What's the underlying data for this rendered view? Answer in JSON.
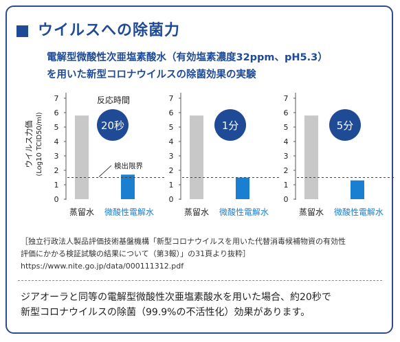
{
  "title": "ウイルスへの除菌力",
  "subtitle_lines": [
    "電解型微酸性次亜塩素酸水（有効塩素濃度32ppm、pH5.3）",
    "を用いた新型コロナウイルスの除菌効果の実験"
  ],
  "colors": {
    "accent": "#1f4a96",
    "bar_control": "#c8c8c8",
    "bar_treated": "#1a7fd1",
    "badge": "#1f4a96"
  },
  "reaction_time_label": "反応時間",
  "y_axis_label": "ウイルス力価",
  "y_axis_unit": "(Log10 TCID50/ml)",
  "detection_limit_label": "検出限界",
  "chart_data": [
    {
      "type": "bar",
      "time_label": "20秒",
      "categories": [
        "蒸留水",
        "微酸性電解水"
      ],
      "values": [
        5.8,
        1.7
      ],
      "detection_limit": 1.5,
      "yticks": [
        "0",
        "1",
        "2",
        "3",
        "4",
        "5",
        "6",
        "7"
      ],
      "ylim": [
        0,
        7
      ]
    },
    {
      "type": "bar",
      "time_label": "1分",
      "categories": [
        "蒸留水",
        "微酸性電解水"
      ],
      "values": [
        5.8,
        1.5
      ],
      "detection_limit": 1.5,
      "yticks": [
        "0",
        "1",
        "2",
        "3",
        "4",
        "5",
        "6",
        "7"
      ],
      "ylim": [
        0,
        7
      ]
    },
    {
      "type": "bar",
      "time_label": "5分",
      "categories": [
        "蒸留水",
        "微酸性電解水"
      ],
      "values": [
        5.8,
        1.3
      ],
      "detection_limit": 1.5,
      "yticks": [
        "0",
        "1",
        "2",
        "3",
        "4",
        "5",
        "6",
        "7"
      ],
      "ylim": [
        0,
        7
      ]
    }
  ],
  "source_lines": [
    "［独立行政法人製品評価技術基盤機構「新型コロナウイルスを用いた代替消毒候補物資の有効性",
    "評価にかかる検証試験の結果について（第3報）」の31頁より抜粋］",
    "https://www.nite.go.jp/data/000111312.pdf"
  ],
  "conclusion_lines": [
    "ジアオーラと同等の電解型微酸性次亜塩素酸水を用いた場合、約20秒で",
    "新型コロナウイルスの除菌（99.9%の不活性化）効果があります。"
  ]
}
